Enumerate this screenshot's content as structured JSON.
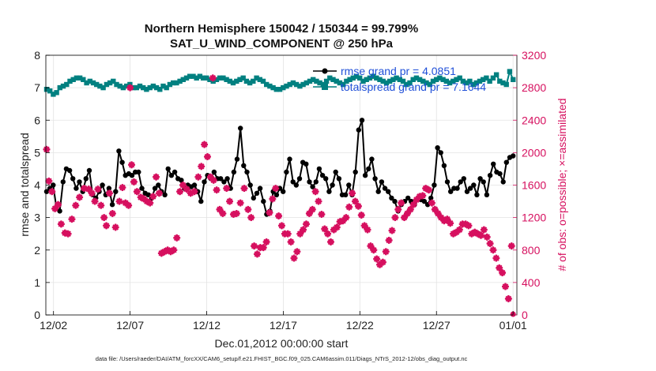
{
  "chart_data": {
    "type": "line",
    "title_line1": "Northern Hemisphere 150042 / 150344 = 99.799%",
    "title_line2": "SAT_U_WIND_COMPONENT @ 250 hPa",
    "xlabel": "Dec.01,2012 00:00:00 start",
    "ylabel_left": "rmse and totalspread",
    "ylabel_right": "# of obs: o=possible; ×=assimilated",
    "footer": "data file: /Users/raeder/DAI/ATM_forcXX/CAM6_setup/f.e21.FHIST_BGC.f09_025.CAM6assim.011/Diags_NTrS_2012-12/obs_diag_output.nc",
    "x_range_days": [
      0.5,
      31.25
    ],
    "y_left_range": [
      0,
      8
    ],
    "y_right_range": [
      0,
      3200
    ],
    "x_ticks": [
      {
        "day": 1,
        "label": "12/02"
      },
      {
        "day": 6,
        "label": "12/07"
      },
      {
        "day": 11,
        "label": "12/12"
      },
      {
        "day": 16,
        "label": "12/17"
      },
      {
        "day": 21,
        "label": "12/22"
      },
      {
        "day": 26,
        "label": "12/27"
      },
      {
        "day": 31,
        "label": "01/01"
      }
    ],
    "y_left_ticks": [
      "0",
      "1",
      "2",
      "3",
      "4",
      "5",
      "6",
      "7",
      "8"
    ],
    "y_right_ticks": [
      "0",
      "400",
      "800",
      "1200",
      "1600",
      "2000",
      "2400",
      "2800",
      "3200"
    ],
    "grid": true,
    "legend_position": "top-right",
    "colors": {
      "rmse": "#000000",
      "totalspread": "#008080",
      "obs": "#d6105f",
      "legend_text": "#1f4fd8"
    },
    "series": [
      {
        "name": "rmse grand pr = 4.0851",
        "axis": "left",
        "marker": "circle",
        "values": [
          3.8,
          3.9,
          4.0,
          3.3,
          3.2,
          4.1,
          4.5,
          4.45,
          4.2,
          3.9,
          4.1,
          3.8,
          4.2,
          4.45,
          3.7,
          3.6,
          3.8,
          4.0,
          3.7,
          3.9,
          3.4,
          3.8,
          5.05,
          4.7,
          4.3,
          4.35,
          4.3,
          4.4,
          4.4,
          3.9,
          3.75,
          3.7,
          3.6,
          3.9,
          4.0,
          3.8,
          3.7,
          4.5,
          4.3,
          4.4,
          4.2,
          4.15,
          3.9,
          4.0,
          3.95,
          4.0,
          3.8,
          3.5,
          4.1,
          4.3,
          4.2,
          4.4,
          4.2,
          4.2,
          4.1,
          4.2,
          3.9,
          4.4,
          4.8,
          5.75,
          4.6,
          4.4,
          4.0,
          3.6,
          3.75,
          3.9,
          3.5,
          3.1,
          3.2,
          3.8,
          3.7,
          3.9,
          3.8,
          4.4,
          4.8,
          4.1,
          4.0,
          4.2,
          4.7,
          4.65,
          4.1,
          3.95,
          4.1,
          4.5,
          4.3,
          4.2,
          3.8,
          4.0,
          4.4,
          4.2,
          3.7,
          3.7,
          4.0,
          3.7,
          4.4,
          5.7,
          6.0,
          4.3,
          4.5,
          4.8,
          4.2,
          3.8,
          4.1,
          3.9,
          3.8,
          3.6,
          3.5,
          3.2,
          3.4,
          3.5,
          3.6,
          3.5,
          3.4,
          3.6,
          3.55,
          3.5,
          3.4,
          3.6,
          4.0,
          5.15,
          5.0,
          4.6,
          4.1,
          3.8,
          3.9,
          3.9,
          4.1,
          4.2,
          3.8,
          3.9,
          4.0,
          3.7,
          4.2,
          4.1,
          3.7,
          4.3,
          4.65,
          4.4,
          4.35,
          4.1,
          4.7,
          4.85,
          4.9
        ]
      },
      {
        "name": "totalspread grand pr = 7.1644",
        "axis": "left",
        "marker": "square",
        "values": [
          6.95,
          6.9,
          6.8,
          6.85,
          7.0,
          7.05,
          7.1,
          7.2,
          7.25,
          7.3,
          7.3,
          7.25,
          7.15,
          7.2,
          7.15,
          7.1,
          7.05,
          7.0,
          7.1,
          7.15,
          7.2,
          7.1,
          7.05,
          7.0,
          7.05,
          7.1,
          7.0,
          7.0,
          7.05,
          7.0,
          6.95,
          7.0,
          7.05,
          7.0,
          6.95,
          7.05,
          7.0,
          7.1,
          7.15,
          7.15,
          7.2,
          7.25,
          7.3,
          7.35,
          7.35,
          7.3,
          7.35,
          7.3,
          7.3,
          7.25,
          7.2,
          7.25,
          7.3,
          7.3,
          7.25,
          7.2,
          7.15,
          7.2,
          7.25,
          7.3,
          7.2,
          7.15,
          7.2,
          7.3,
          7.25,
          7.2,
          7.1,
          7.05,
          7.0,
          6.95,
          6.95,
          7.0,
          7.05,
          7.1,
          7.15,
          7.1,
          7.05,
          7.1,
          7.15,
          7.2,
          7.25,
          7.2,
          7.15,
          7.1,
          7.2,
          7.3,
          7.25,
          7.2,
          7.15,
          7.1,
          7.2,
          7.25,
          7.3,
          7.35,
          7.3,
          7.2,
          7.25,
          7.3,
          7.35,
          7.3,
          7.25,
          7.2,
          7.15,
          7.2,
          7.25,
          7.3,
          7.25,
          7.2,
          7.1,
          7.15,
          7.25,
          7.3,
          7.25,
          7.2,
          7.15,
          7.1,
          7.2,
          7.25,
          7.3,
          7.25,
          7.2,
          7.15,
          7.2,
          7.25,
          7.3,
          7.2,
          7.15,
          7.2,
          7.1,
          7.15,
          7.2,
          7.25,
          7.3,
          7.2,
          7.3,
          7.4,
          7.2,
          7.15,
          7.1,
          7.5,
          7.25
        ]
      },
      {
        "name": "# of obs assimilated",
        "axis": "right",
        "marker": "star",
        "points": [
          [
            0.55,
            2040
          ],
          [
            0.7,
            1650
          ],
          [
            0.9,
            1520
          ],
          [
            1.1,
            1310
          ],
          [
            1.3,
            1360
          ],
          [
            1.5,
            1120
          ],
          [
            1.75,
            1010
          ],
          [
            1.95,
            1000
          ],
          [
            2.2,
            1180
          ],
          [
            2.45,
            1350
          ],
          [
            2.7,
            1450
          ],
          [
            3.0,
            1560
          ],
          [
            3.3,
            1550
          ],
          [
            3.5,
            1500
          ],
          [
            3.7,
            1400
          ],
          [
            3.9,
            1550
          ],
          [
            4.1,
            1350
          ],
          [
            4.3,
            1200
          ],
          [
            4.45,
            1100
          ],
          [
            4.65,
            1500
          ],
          [
            4.85,
            1250
          ],
          [
            5.05,
            1080
          ],
          [
            5.3,
            1400
          ],
          [
            5.5,
            1570
          ],
          [
            5.7,
            1380
          ],
          [
            5.9,
            1350
          ],
          [
            6.1,
            1850
          ],
          [
            6.25,
            1640
          ],
          [
            6.45,
            1520
          ],
          [
            6.7,
            1450
          ],
          [
            6.9,
            1430
          ],
          [
            7.1,
            1400
          ],
          [
            7.3,
            1380
          ],
          [
            7.5,
            1460
          ],
          [
            7.7,
            1700
          ],
          [
            7.9,
            1500
          ],
          [
            8.05,
            760
          ],
          [
            8.25,
            780
          ],
          [
            8.45,
            800
          ],
          [
            8.65,
            780
          ],
          [
            8.85,
            800
          ],
          [
            9.05,
            950
          ],
          [
            9.25,
            1520
          ],
          [
            9.45,
            1600
          ],
          [
            9.7,
            1550
          ],
          [
            9.95,
            1500
          ],
          [
            10.2,
            1520
          ],
          [
            10.45,
            1700
          ],
          [
            10.65,
            1830
          ],
          [
            10.85,
            2100
          ],
          [
            11.05,
            1950
          ],
          [
            11.25,
            1700
          ],
          [
            11.45,
            1660
          ],
          [
            11.65,
            1540
          ],
          [
            11.85,
            1300
          ],
          [
            12.05,
            1250
          ],
          [
            12.3,
            1560
          ],
          [
            12.5,
            1400
          ],
          [
            12.75,
            1240
          ],
          [
            12.95,
            1250
          ],
          [
            13.2,
            1380
          ],
          [
            13.45,
            1560
          ],
          [
            13.7,
            1300
          ],
          [
            13.9,
            1200
          ],
          [
            14.1,
            850
          ],
          [
            14.3,
            750
          ],
          [
            14.5,
            830
          ],
          [
            14.7,
            830
          ],
          [
            14.9,
            900
          ],
          [
            15.1,
            1260
          ],
          [
            15.3,
            1430
          ],
          [
            15.5,
            1560
          ],
          [
            15.7,
            1220
          ],
          [
            15.9,
            1100
          ],
          [
            16.1,
            1000
          ],
          [
            16.3,
            1000
          ],
          [
            16.5,
            900
          ],
          [
            16.7,
            700
          ],
          [
            16.9,
            780
          ],
          [
            17.1,
            1000
          ],
          [
            17.3,
            1050
          ],
          [
            17.5,
            1120
          ],
          [
            17.7,
            1250
          ],
          [
            17.9,
            1300
          ],
          [
            18.1,
            1520
          ],
          [
            18.3,
            1400
          ],
          [
            18.5,
            1240
          ],
          [
            18.7,
            1060
          ],
          [
            18.9,
            1000
          ],
          [
            19.1,
            900
          ],
          [
            19.3,
            1050
          ],
          [
            19.5,
            1080
          ],
          [
            19.7,
            1150
          ],
          [
            19.9,
            1160
          ],
          [
            20.1,
            1200
          ],
          [
            20.3,
            1330
          ],
          [
            20.5,
            1500
          ],
          [
            20.7,
            1400
          ],
          [
            20.9,
            1340
          ],
          [
            21.1,
            1230
          ],
          [
            21.3,
            1100
          ],
          [
            21.5,
            1050
          ],
          [
            21.7,
            850
          ],
          [
            21.9,
            800
          ],
          [
            22.1,
            690
          ],
          [
            22.3,
            620
          ],
          [
            22.5,
            650
          ],
          [
            22.7,
            780
          ],
          [
            22.9,
            920
          ],
          [
            23.1,
            1040
          ],
          [
            23.3,
            1200
          ],
          [
            23.5,
            1300
          ],
          [
            23.7,
            1380
          ],
          [
            23.9,
            1200
          ],
          [
            24.1,
            1250
          ],
          [
            24.3,
            1300
          ],
          [
            24.5,
            1360
          ],
          [
            24.7,
            1420
          ],
          [
            24.9,
            1460
          ],
          [
            25.1,
            1470
          ],
          [
            25.3,
            1560
          ],
          [
            25.5,
            1540
          ],
          [
            25.7,
            1380
          ],
          [
            25.9,
            1300
          ],
          [
            26.1,
            1250
          ],
          [
            26.3,
            1200
          ],
          [
            26.5,
            1160
          ],
          [
            26.7,
            1180
          ],
          [
            26.9,
            1130
          ],
          [
            27.1,
            1000
          ],
          [
            27.3,
            1020
          ],
          [
            27.5,
            1050
          ],
          [
            27.7,
            1120
          ],
          [
            27.9,
            1120
          ],
          [
            28.1,
            1100
          ],
          [
            28.3,
            1000
          ],
          [
            28.5,
            1020
          ],
          [
            28.7,
            1000
          ],
          [
            28.9,
            980
          ],
          [
            29.1,
            1050
          ],
          [
            29.3,
            960
          ],
          [
            29.5,
            880
          ],
          [
            29.7,
            800
          ],
          [
            29.9,
            700
          ],
          [
            30.1,
            580
          ],
          [
            30.3,
            520
          ],
          [
            30.5,
            350
          ],
          [
            30.7,
            200
          ],
          [
            30.9,
            850
          ]
        ]
      }
    ],
    "extra_obs_points": [
      [
        6.0,
        2800
      ],
      [
        11.4,
        2920
      ]
    ]
  }
}
